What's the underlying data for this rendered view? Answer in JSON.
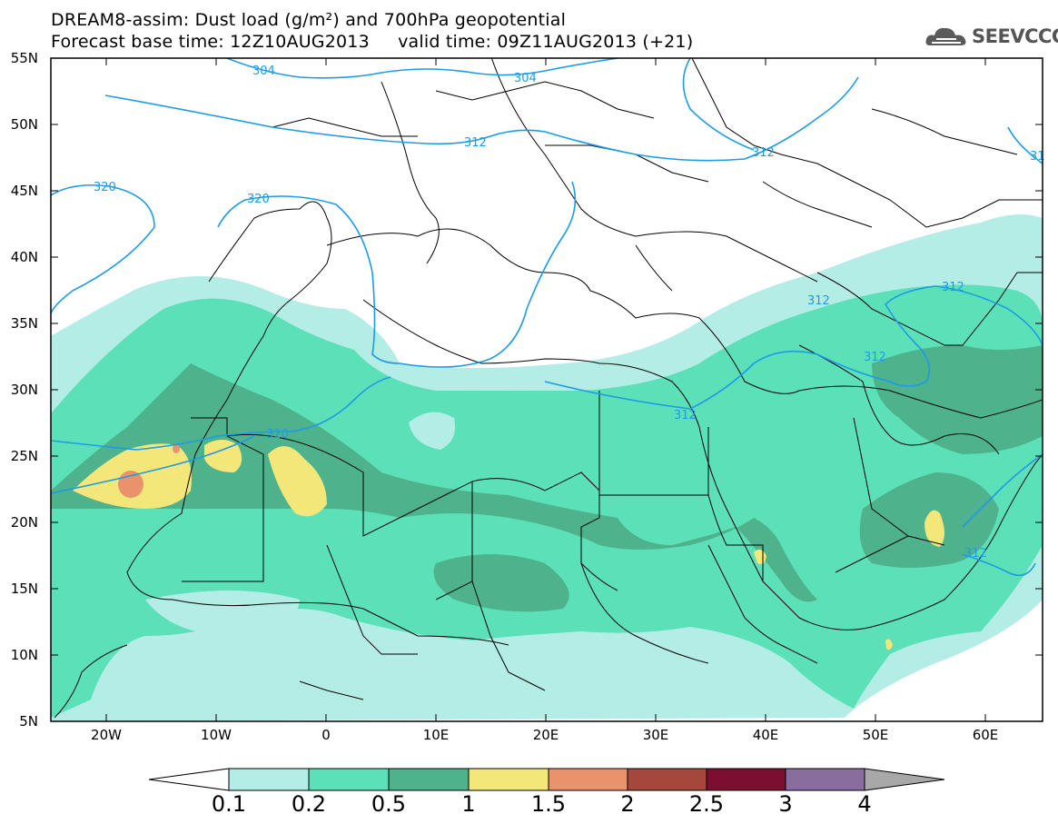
{
  "title_line1": "DREAM8-assim: Dust load (g/m²) and 700hPa geopotential",
  "title_line2": "Forecast base time: 12Z10AUG2013     valid time: 09Z11AUG2013 (+21)",
  "logo_text": "SEEVCCC",
  "axes": {
    "lat_labels": [
      "55N",
      "50N",
      "45N",
      "40N",
      "35N",
      "30N",
      "25N",
      "20N",
      "15N",
      "10N",
      "5N"
    ],
    "lon_labels": [
      "20W",
      "10W",
      "0",
      "10E",
      "20E",
      "30E",
      "40E",
      "50E",
      "60E"
    ]
  },
  "contour_labels": [
    "304",
    "304",
    "312",
    "312",
    "320",
    "320",
    "320",
    "312",
    "312",
    "312",
    "312",
    "312",
    "31"
  ],
  "colorbar": {
    "colors": [
      "#b4ede6",
      "#5ce0b8",
      "#4eb38c",
      "#f4e779",
      "#e9926b",
      "#a5473c",
      "#7c0e32",
      "#8a6d9f",
      "#a8a8a8"
    ],
    "labels": [
      "0.1",
      "0.2",
      "0.5",
      "1",
      "1.5",
      "2",
      "2.5",
      "3",
      "4"
    ]
  },
  "colors": {
    "level_0_1": "#b4ede6",
    "level_0_2": "#5ce0b8",
    "level_0_5": "#4eb38c",
    "level_1": "#f4e779",
    "level_1_5": "#e9926b",
    "geopotential": "#1e9be6",
    "borders": "#000000"
  }
}
